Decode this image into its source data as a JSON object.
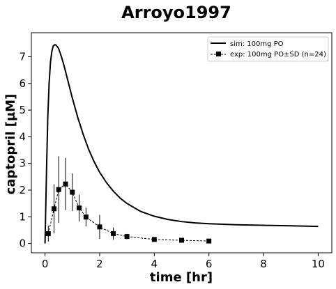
{
  "chart_data": {
    "type": "line",
    "title": "Arroyo1997",
    "xlabel": "time [hr]",
    "ylabel": "captopril [µM]",
    "xlim": [
      -0.5,
      10.5
    ],
    "ylim": [
      -0.35,
      7.9
    ],
    "xticks": [
      0,
      2,
      4,
      6,
      8,
      10
    ],
    "yticks": [
      0,
      1,
      2,
      3,
      4,
      5,
      6,
      7
    ],
    "grid": false,
    "legend_position": "top-right",
    "series": [
      {
        "name": "sim: 100mg PO",
        "style": "solid-line",
        "color": "#000000",
        "x": [
          0,
          0.05,
          0.1,
          0.15,
          0.2,
          0.25,
          0.3,
          0.35,
          0.4,
          0.45,
          0.5,
          0.6,
          0.7,
          0.8,
          0.9,
          1.0,
          1.2,
          1.4,
          1.6,
          1.8,
          2.0,
          2.25,
          2.5,
          2.75,
          3.0,
          3.5,
          4.0,
          4.5,
          5.0,
          5.5,
          6.0,
          7.0,
          8.0,
          9.0,
          10.0
        ],
        "y": [
          0,
          2.5,
          4.7,
          6.0,
          6.8,
          7.2,
          7.4,
          7.45,
          7.44,
          7.38,
          7.3,
          7.0,
          6.65,
          6.25,
          5.85,
          5.45,
          4.72,
          4.08,
          3.52,
          3.06,
          2.67,
          2.28,
          1.96,
          1.7,
          1.5,
          1.2,
          1.02,
          0.9,
          0.82,
          0.77,
          0.74,
          0.7,
          0.68,
          0.66,
          0.64
        ]
      },
      {
        "name": "exp: 100mg PO±SD (n=24)",
        "style": "dashed-line-square-markers",
        "color": "#000000",
        "x": [
          0.12,
          0.33,
          0.5,
          0.75,
          1.0,
          1.25,
          1.5,
          2.0,
          2.5,
          3.0,
          4.0,
          5.0,
          6.0
        ],
        "y": [
          0.37,
          1.3,
          2.02,
          2.23,
          1.92,
          1.33,
          0.99,
          0.62,
          0.37,
          0.26,
          0.15,
          0.12,
          0.09
        ],
        "sd": [
          0.3,
          0.92,
          1.25,
          0.98,
          0.71,
          0.5,
          0.35,
          0.45,
          0.23,
          0.1,
          0.05,
          0.03,
          0.03
        ]
      }
    ]
  }
}
